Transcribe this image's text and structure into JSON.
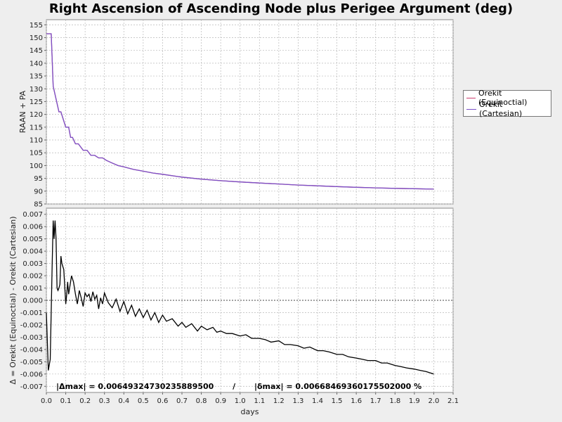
{
  "title": "Right Ascension of Ascending Node plus Perigee Argument (deg)",
  "stats_text": "|Δmax| = 0.00649324730235889500       /       |δmax| = 0.00668469360175502000 %",
  "legend": [
    {
      "name": "Orekit (Equinoctial)",
      "color": "#cc3c6e"
    },
    {
      "name": "Orekit (Cartesian)",
      "color": "#7b52c8"
    }
  ],
  "chart_data": [
    {
      "type": "line",
      "ylabel": "RAAN + PA",
      "xlim": [
        0,
        2.1
      ],
      "ylim": [
        85,
        157
      ],
      "grid": true,
      "legend_placement": "right",
      "xticks": [
        0.0,
        0.1,
        0.2,
        0.3,
        0.4,
        0.5,
        0.6,
        0.7,
        0.8,
        0.9,
        1.0,
        1.1,
        1.2,
        1.3,
        1.4,
        1.5,
        1.6,
        1.7,
        1.8,
        1.9,
        2.0,
        2.1
      ],
      "yticks": [
        85,
        90,
        95,
        100,
        105,
        110,
        115,
        120,
        125,
        130,
        135,
        140,
        145,
        150,
        155
      ],
      "series": [
        {
          "name": "Orekit (Equinoctial)",
          "color": "#cc3c6e",
          "x": [
            0.0,
            0.025,
            0.035,
            0.065,
            0.075,
            0.1,
            0.115,
            0.125,
            0.135,
            0.15,
            0.165,
            0.19,
            0.21,
            0.23,
            0.25,
            0.27,
            0.29,
            0.31,
            0.34,
            0.37,
            0.4,
            0.45,
            0.5,
            0.55,
            0.6,
            0.7,
            0.8,
            0.9,
            1.0,
            1.1,
            1.2,
            1.3,
            1.4,
            1.5,
            1.6,
            1.7,
            1.8,
            1.9,
            2.0
          ],
          "y": [
            151.5,
            151.5,
            131,
            121,
            121,
            115,
            115,
            111,
            111,
            108.5,
            108.5,
            106,
            106,
            104,
            104,
            103,
            103,
            102,
            101,
            100,
            99.5,
            98.5,
            97.8,
            97.1,
            96.6,
            95.5,
            94.7,
            94.1,
            93.6,
            93.2,
            92.8,
            92.4,
            92.1,
            91.8,
            91.5,
            91.3,
            91.1,
            90.95,
            90.8
          ]
        },
        {
          "name": "Orekit (Cartesian)",
          "color": "#7b52c8",
          "x": [
            0.0,
            0.025,
            0.035,
            0.065,
            0.075,
            0.1,
            0.115,
            0.125,
            0.135,
            0.15,
            0.165,
            0.19,
            0.21,
            0.23,
            0.25,
            0.27,
            0.29,
            0.31,
            0.34,
            0.37,
            0.4,
            0.45,
            0.5,
            0.55,
            0.6,
            0.7,
            0.8,
            0.9,
            1.0,
            1.1,
            1.2,
            1.3,
            1.4,
            1.5,
            1.6,
            1.7,
            1.8,
            1.9,
            2.0
          ],
          "y": [
            151.5,
            151.5,
            131,
            121,
            121,
            115,
            115,
            111,
            111,
            108.5,
            108.5,
            106,
            106,
            104,
            104,
            103,
            103,
            102,
            101,
            100,
            99.5,
            98.5,
            97.8,
            97.1,
            96.6,
            95.5,
            94.7,
            94.1,
            93.6,
            93.2,
            92.8,
            92.4,
            92.1,
            91.8,
            91.5,
            91.3,
            91.1,
            90.95,
            90.8
          ]
        }
      ]
    },
    {
      "type": "line",
      "xlabel": "days",
      "ylabel": "Δ = Orekit (Equinoctial) - Orekit (Cartesian)",
      "xlim": [
        0,
        2.1
      ],
      "ylim": [
        -0.0075,
        0.0075
      ],
      "grid": true,
      "zero_line": true,
      "xticks": [
        0.0,
        0.1,
        0.2,
        0.3,
        0.4,
        0.5,
        0.6,
        0.7,
        0.8,
        0.9,
        1.0,
        1.1,
        1.2,
        1.3,
        1.4,
        1.5,
        1.6,
        1.7,
        1.8,
        1.9,
        2.0,
        2.1
      ],
      "yticks": [
        -0.007,
        -0.006,
        -0.005,
        -0.004,
        -0.003,
        -0.002,
        -0.001,
        0.0,
        0.001,
        0.002,
        0.003,
        0.004,
        0.005,
        0.006,
        0.007
      ],
      "series": [
        {
          "name": "",
          "color": "#000000",
          "x": [
            0.0,
            0.01,
            0.02,
            0.03,
            0.035,
            0.04,
            0.045,
            0.05,
            0.055,
            0.06,
            0.065,
            0.07,
            0.075,
            0.08,
            0.09,
            0.1,
            0.105,
            0.11,
            0.115,
            0.12,
            0.13,
            0.14,
            0.15,
            0.16,
            0.17,
            0.18,
            0.19,
            0.2,
            0.21,
            0.22,
            0.23,
            0.24,
            0.25,
            0.26,
            0.27,
            0.28,
            0.29,
            0.3,
            0.32,
            0.34,
            0.36,
            0.38,
            0.4,
            0.42,
            0.44,
            0.46,
            0.48,
            0.5,
            0.52,
            0.54,
            0.56,
            0.58,
            0.6,
            0.62,
            0.65,
            0.68,
            0.7,
            0.72,
            0.75,
            0.78,
            0.8,
            0.83,
            0.86,
            0.88,
            0.9,
            0.93,
            0.96,
            1.0,
            1.03,
            1.06,
            1.1,
            1.13,
            1.16,
            1.2,
            1.23,
            1.26,
            1.3,
            1.33,
            1.36,
            1.4,
            1.43,
            1.46,
            1.5,
            1.53,
            1.56,
            1.6,
            1.63,
            1.66,
            1.7,
            1.73,
            1.76,
            1.8,
            1.83,
            1.86,
            1.9,
            1.93,
            1.96,
            2.0
          ],
          "y": [
            -0.001,
            -0.0057,
            -0.0048,
            0.003,
            0.0065,
            0.005,
            0.0065,
            0.005,
            0.001,
            0.0008,
            0.001,
            0.0013,
            0.0036,
            0.003,
            0.0025,
            -0.0003,
            0.0005,
            0.0015,
            0.0005,
            0.001,
            0.002,
            0.0015,
            0.0005,
            -0.0003,
            0.0008,
            0.0002,
            -0.0005,
            0.0006,
            0.0003,
            0.0005,
            -0.0001,
            0.0007,
            0.0001,
            0.0004,
            -0.0007,
            0.0002,
            -0.0003,
            0.0006,
            -0.0002,
            -0.0006,
            0.0001,
            -0.0009,
            -0.0001,
            -0.0011,
            -0.0004,
            -0.0013,
            -0.0007,
            -0.0014,
            -0.0008,
            -0.0016,
            -0.001,
            -0.0018,
            -0.0012,
            -0.0017,
            -0.0015,
            -0.0021,
            -0.0018,
            -0.0022,
            -0.0019,
            -0.0025,
            -0.0021,
            -0.0024,
            -0.0022,
            -0.0026,
            -0.0025,
            -0.0027,
            -0.0027,
            -0.0029,
            -0.0028,
            -0.0031,
            -0.0031,
            -0.0032,
            -0.0034,
            -0.0033,
            -0.0036,
            -0.0036,
            -0.0037,
            -0.0039,
            -0.0038,
            -0.0041,
            -0.0041,
            -0.0042,
            -0.0044,
            -0.0044,
            -0.0046,
            -0.0047,
            -0.0048,
            -0.0049,
            -0.0049,
            -0.0051,
            -0.0051,
            -0.0053,
            -0.0054,
            -0.0055,
            -0.0056,
            -0.0057,
            -0.0058,
            -0.006
          ]
        }
      ]
    }
  ]
}
